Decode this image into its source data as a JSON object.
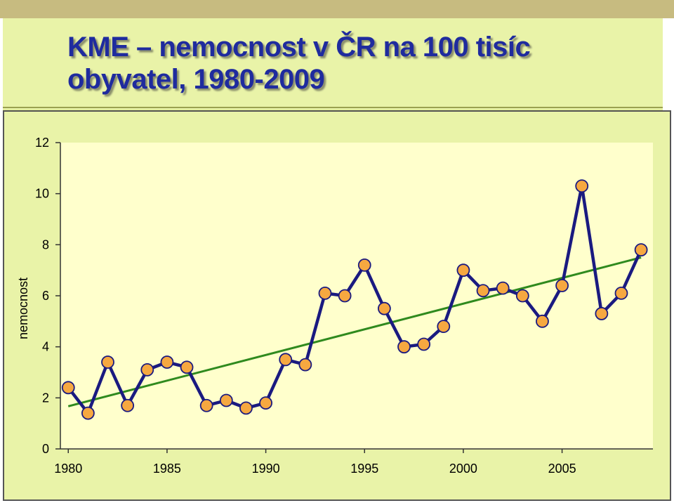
{
  "slide": {
    "title_line1": "KME – nemocnost v ČR na 100 tisíc",
    "title_line2": "obyvatel, 1980-2009"
  },
  "colors": {
    "background": "#e9f3a8",
    "plot_area": "#ffffcc",
    "series_line": "#1a1a80",
    "marker_fill": "#f6a840",
    "marker_stroke": "#1a1a80",
    "trend_line": "#2f8a1e",
    "title": "#1f2b9e"
  },
  "chart_data": {
    "type": "line",
    "title": "",
    "xlabel": "",
    "ylabel": "nemocnost",
    "xlim": [
      1979.6,
      2009.6
    ],
    "ylim": [
      0,
      12
    ],
    "x_ticks": [
      1980,
      1985,
      1990,
      1995,
      2000,
      2005
    ],
    "y_ticks": [
      0,
      2,
      4,
      6,
      8,
      10,
      12
    ],
    "grid": false,
    "legend": "none",
    "series": [
      {
        "x": [
          1980,
          1981,
          1982,
          1983,
          1984,
          1985,
          1986,
          1987,
          1988,
          1989,
          1990,
          1991,
          1992,
          1993,
          1994,
          1995,
          1996,
          1997,
          1998,
          1999,
          2000,
          2001,
          2002,
          2003,
          2004,
          2005,
          2006,
          2007,
          2008,
          2009
        ],
        "values": [
          2.4,
          1.4,
          3.4,
          1.7,
          3.1,
          3.4,
          3.2,
          1.7,
          1.9,
          1.6,
          1.8,
          3.5,
          3.3,
          6.1,
          6.0,
          7.2,
          5.5,
          4.0,
          4.1,
          4.8,
          7.0,
          6.2,
          6.3,
          6.0,
          5.0,
          6.4,
          10.3,
          5.3,
          6.1,
          7.8
        ],
        "marker": "circle"
      }
    ],
    "trendline": {
      "type": "linear",
      "x": [
        1980,
        2009
      ],
      "values": [
        1.67,
        7.5
      ]
    }
  }
}
